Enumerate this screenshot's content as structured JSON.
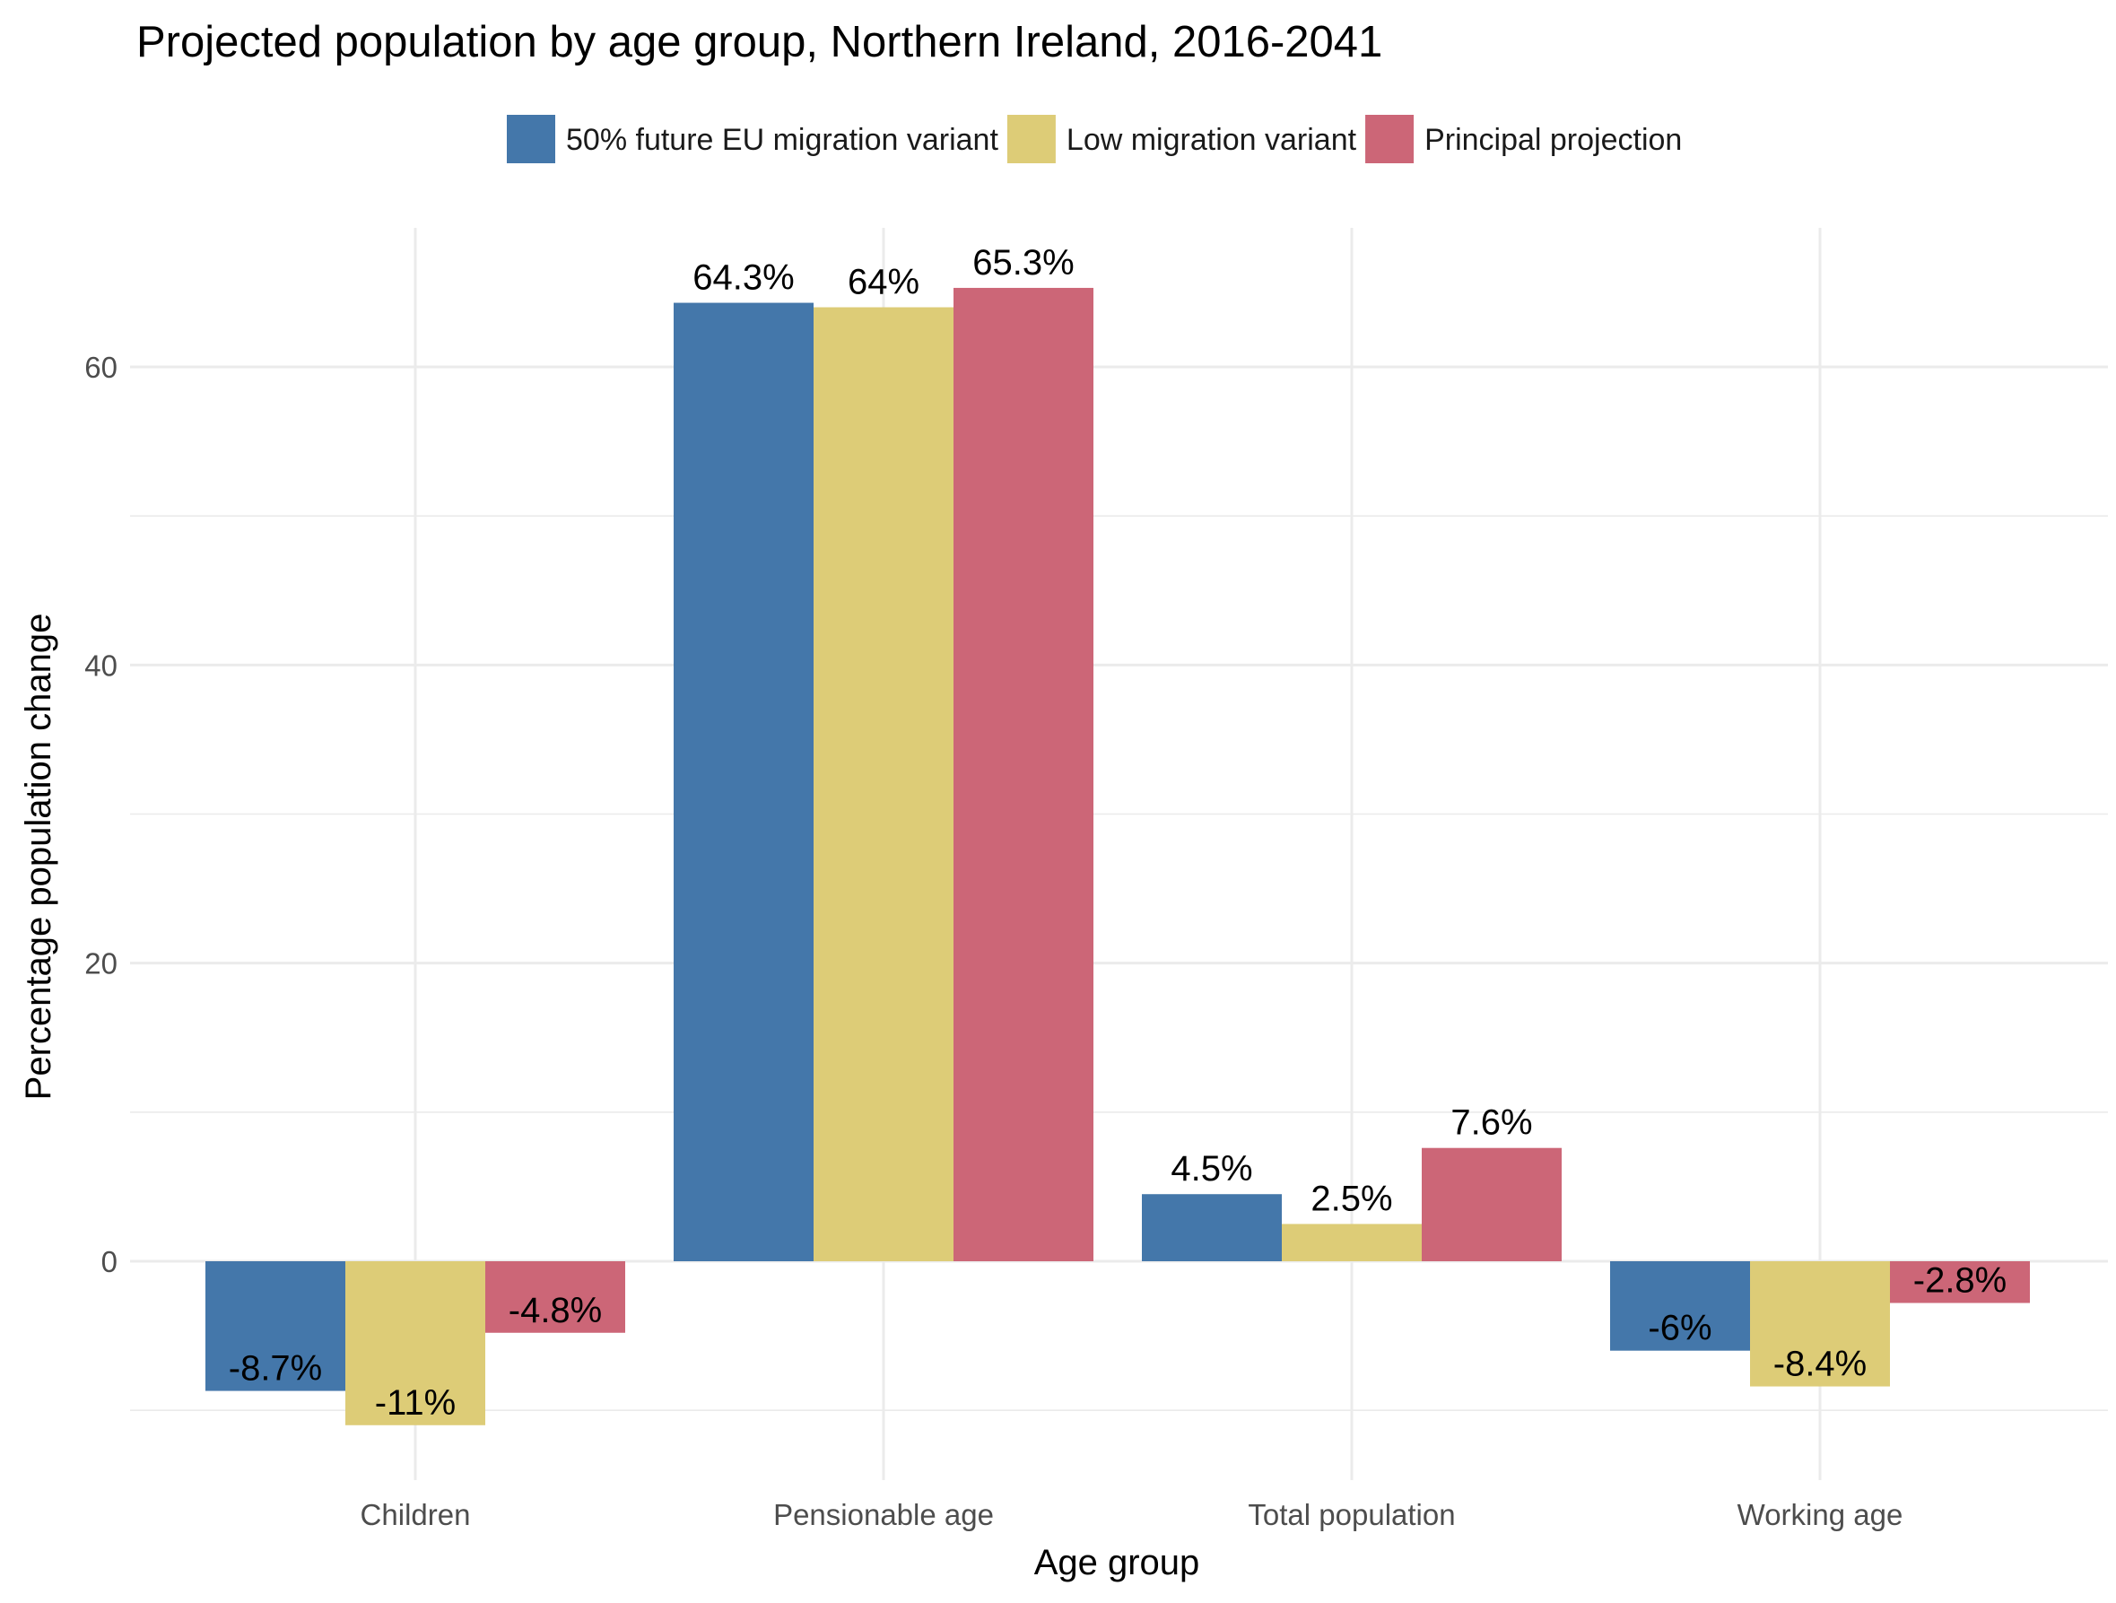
{
  "chart_data": {
    "type": "bar",
    "title": "Projected population by age group, Northern Ireland, 2016-2041",
    "xlabel": "Age group",
    "ylabel": "Percentage population change",
    "categories": [
      "Children",
      "Pensionable age",
      "Total population",
      "Working age"
    ],
    "series": [
      {
        "name": "50% future EU migration variant",
        "color": "#4477aa",
        "values": [
          -8.7,
          64.3,
          4.5,
          -6.0
        ],
        "labels": [
          "-8.7%",
          "64.3%",
          "4.5%",
          "-6%"
        ]
      },
      {
        "name": "Low migration variant",
        "color": "#ddcc77",
        "values": [
          -11.0,
          64.0,
          2.5,
          -8.4
        ],
        "labels": [
          "-11%",
          "64%",
          "2.5%",
          "-8.4%"
        ]
      },
      {
        "name": "Principal projection",
        "color": "#cc6677",
        "values": [
          -4.8,
          65.3,
          7.6,
          -2.8
        ],
        "labels": [
          "-4.8%",
          "65.3%",
          "7.6%",
          "-2.8%"
        ]
      }
    ],
    "yticks": [
      0,
      20,
      40,
      60
    ],
    "ylim": [
      -14.5,
      69.2
    ],
    "grid": true,
    "legend_position": "top"
  }
}
